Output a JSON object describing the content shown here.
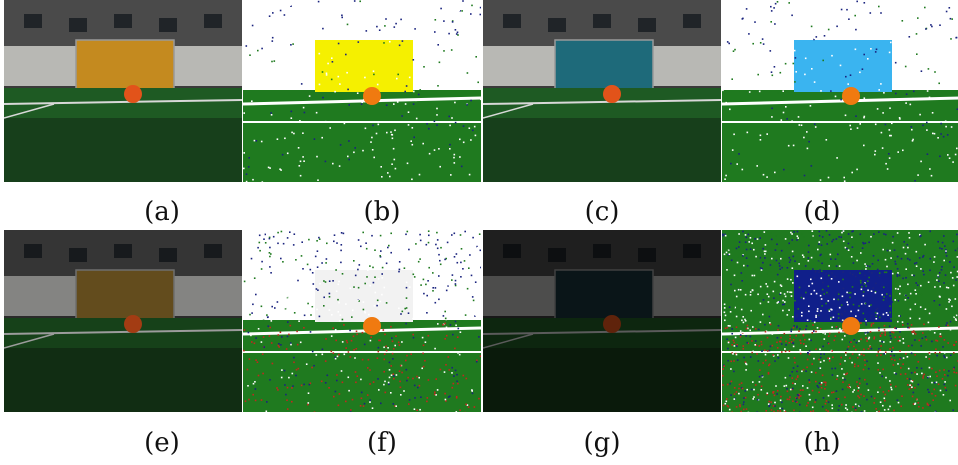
{
  "figure": {
    "panels": [
      {
        "id": "a",
        "label": "(a)",
        "kind": "camera",
        "goal": "#c48a1f",
        "light": "normal"
      },
      {
        "id": "b",
        "label": "(b)",
        "kind": "segmented",
        "goal": "#f5f000",
        "noise": "low",
        "wall": "white"
      },
      {
        "id": "c",
        "label": "(c)",
        "kind": "camera",
        "goal": "#1e6a7a",
        "light": "normal"
      },
      {
        "id": "d",
        "label": "(d)",
        "kind": "segmented",
        "goal": "#3ab4f0",
        "noise": "low",
        "wall": "white"
      },
      {
        "id": "e",
        "label": "(e)",
        "kind": "camera",
        "goal": "#8a6a28",
        "light": "dim"
      },
      {
        "id": "f",
        "label": "(f)",
        "kind": "segmented",
        "goal": "#f2f2f2",
        "noise": "medium",
        "wall": "white"
      },
      {
        "id": "g",
        "label": "(g)",
        "kind": "camera",
        "goal": "#17323a",
        "light": "dark"
      },
      {
        "id": "h",
        "label": "(h)",
        "kind": "segmented",
        "goal": "#101f8a",
        "noise": "high",
        "wall": "green"
      }
    ],
    "colors": {
      "field": "#1f7a1f",
      "line": "#ffffff",
      "ball": "#f07a10",
      "noise_red": "#c0281e",
      "noise_blue": "#1a237e"
    }
  }
}
